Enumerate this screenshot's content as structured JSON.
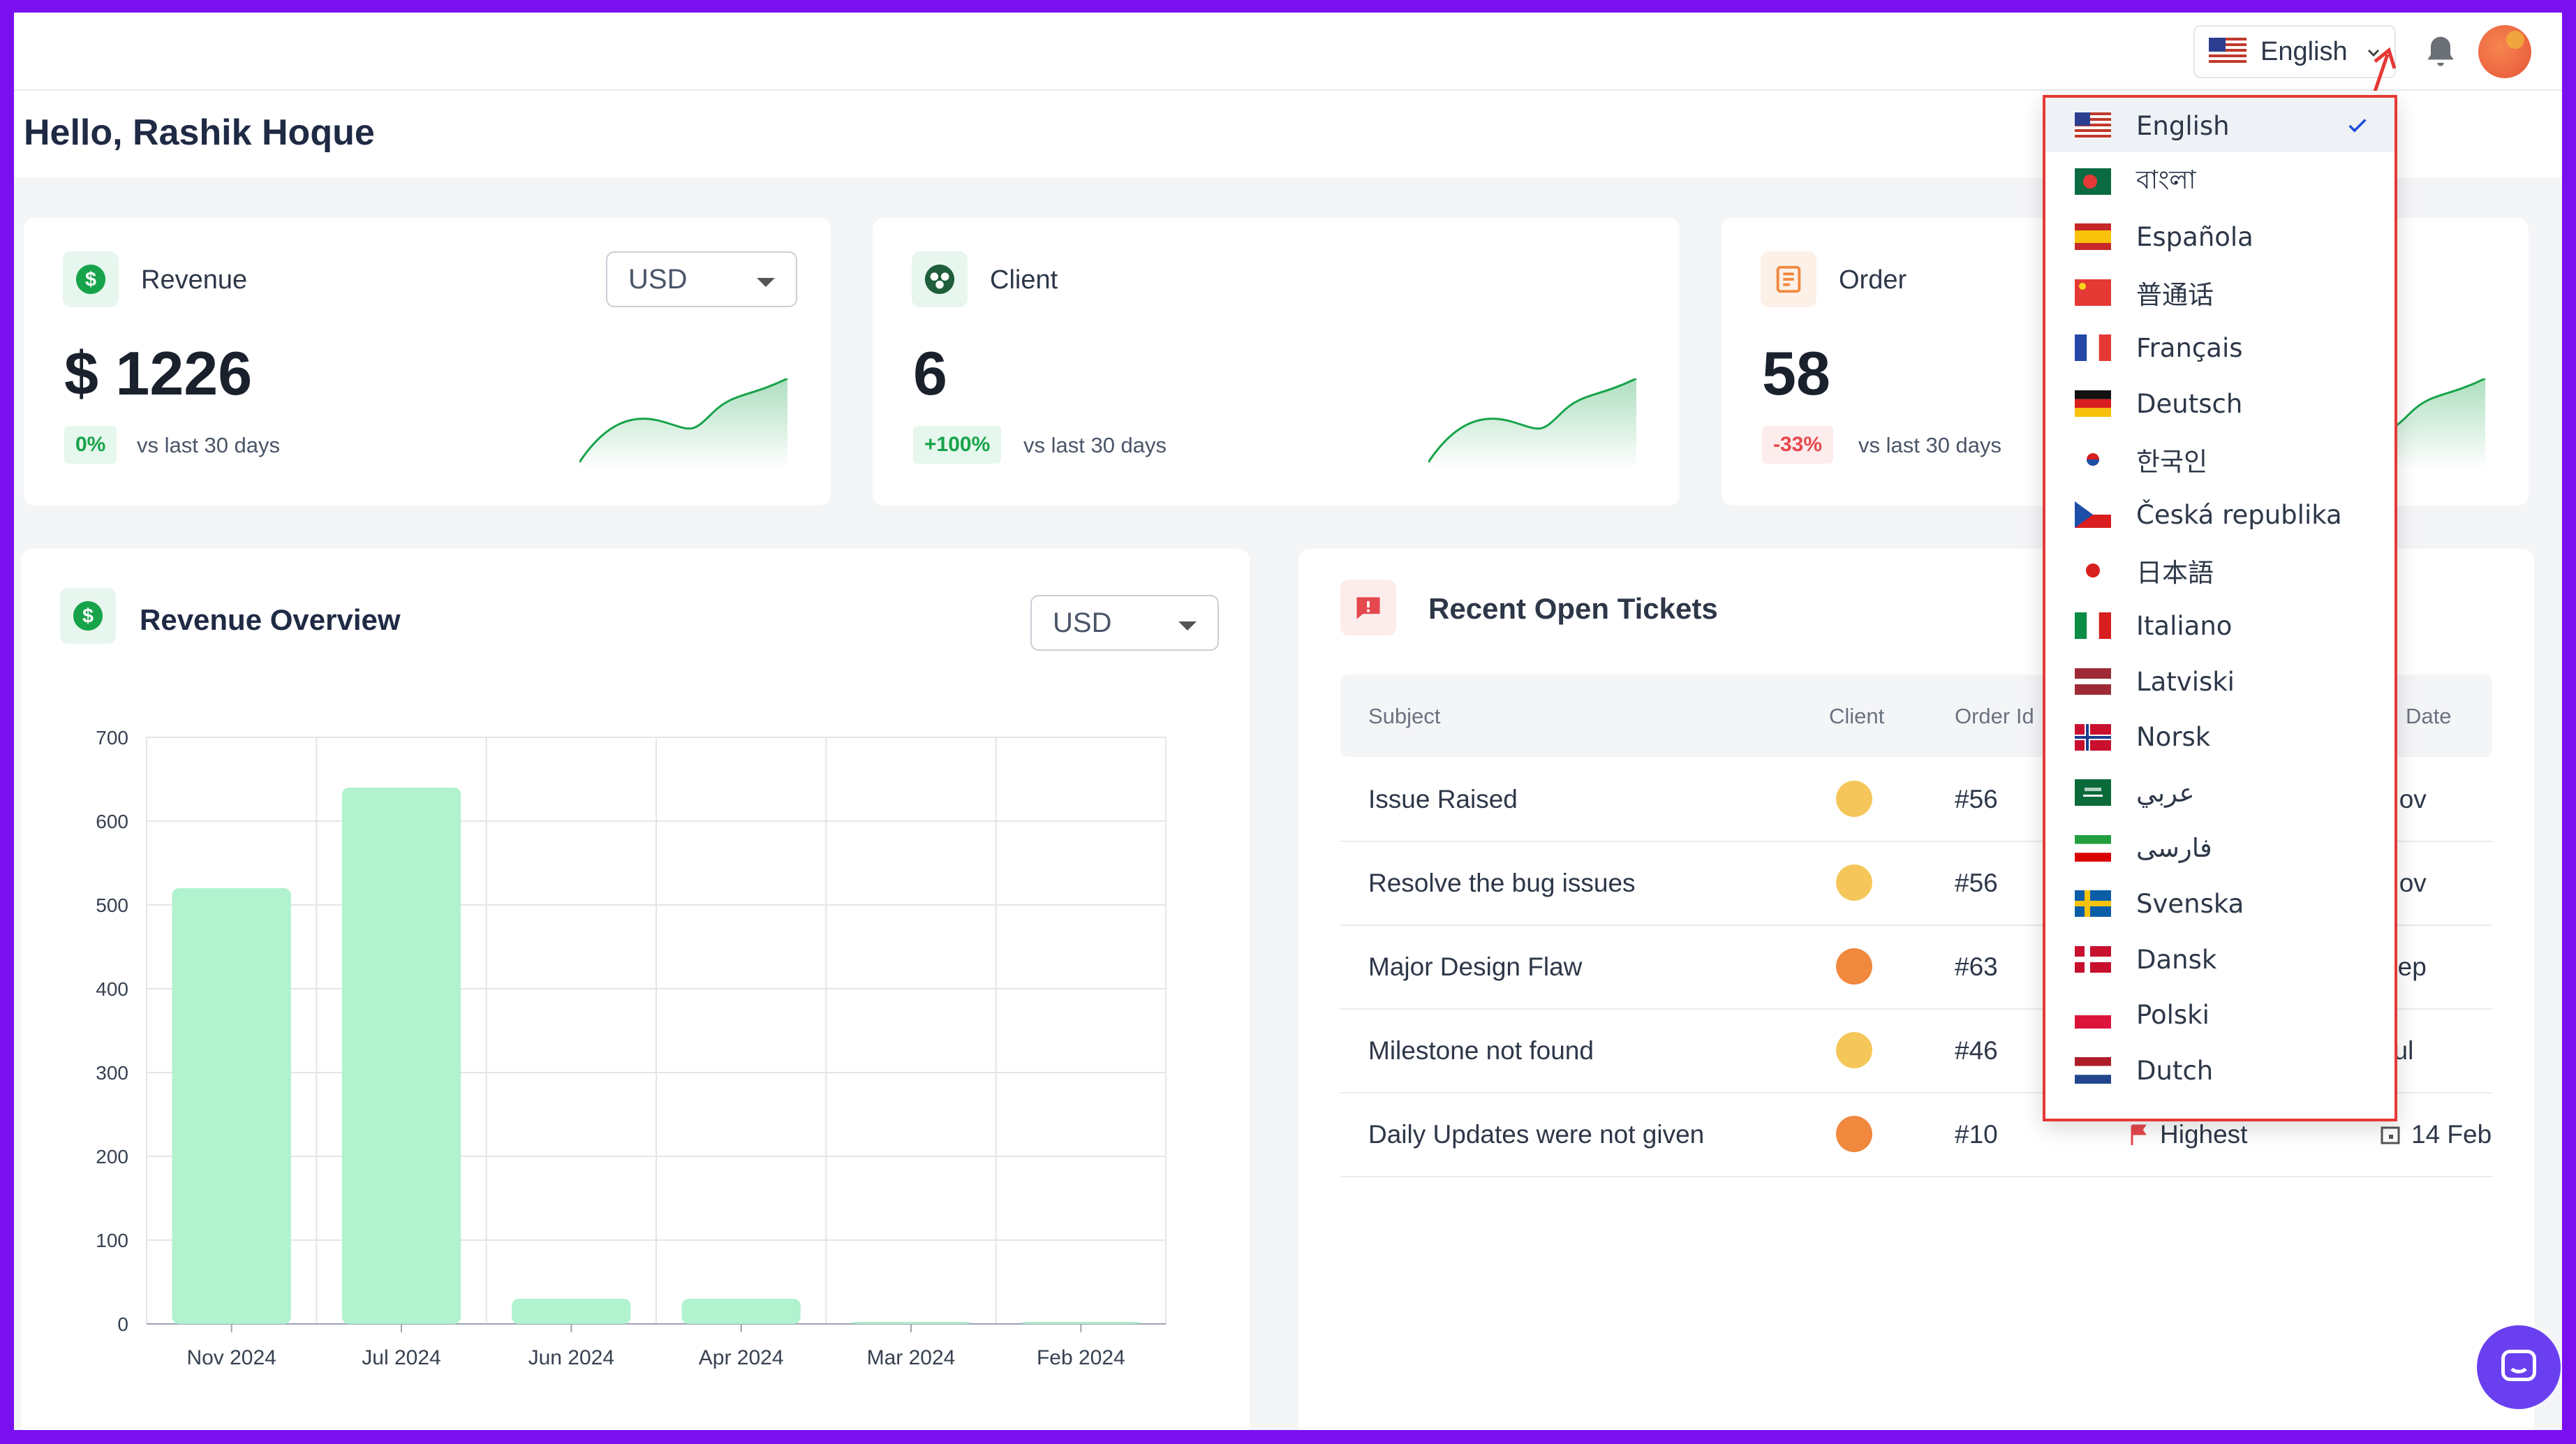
{
  "header": {
    "language": {
      "label": "English",
      "flag": "us"
    },
    "bell_icon": "bell-icon",
    "avatar": "user-avatar"
  },
  "greeting": "Hello, Rashik Hoque",
  "stats": [
    {
      "title": "Revenue",
      "icon": "dollar-icon",
      "value": "$ 1226",
      "change": "0%",
      "change_type": "up",
      "comparison": "vs last 30 days",
      "currency": "USD",
      "accent": "#17a34a"
    },
    {
      "title": "Client",
      "icon": "clients-icon",
      "value": "6",
      "change": "+100%",
      "change_type": "up",
      "comparison": "vs last 30 days",
      "accent": "#17a34a"
    },
    {
      "title": "Order",
      "icon": "orders-icon",
      "value": "58",
      "change": "-33%",
      "change_type": "down",
      "comparison": "vs last 30 days",
      "accent": "#f0883e"
    }
  ],
  "revenue_overview": {
    "title": "Revenue Overview",
    "currency": "USD"
  },
  "chart_data": {
    "type": "bar",
    "title": "Revenue Overview",
    "categories": [
      "Nov 2024",
      "Jul 2024",
      "Jun 2024",
      "Apr 2024",
      "Mar 2024",
      "Feb 2024"
    ],
    "values": [
      520,
      640,
      30,
      30,
      2,
      1
    ],
    "ylim": [
      0,
      700
    ],
    "yticks": [
      "700",
      "600",
      "500",
      "400",
      "300",
      "200",
      "100",
      "0"
    ],
    "grid": true,
    "color": "#b1f2cf"
  },
  "tickets": {
    "title": "Recent Open Tickets",
    "columns": {
      "subject": "Subject",
      "client": "Client",
      "order_id": "Order Id",
      "date": "Date"
    },
    "rows": [
      {
        "subject": "Issue Raised",
        "order_id": "#56",
        "date": "Nov",
        "avatar_color": "#f5c75a"
      },
      {
        "subject": "Resolve the bug issues",
        "order_id": "#56",
        "date": "Nov",
        "avatar_color": "#f5c75a"
      },
      {
        "subject": "Major Design Flaw",
        "order_id": "#63",
        "date": "Sep",
        "avatar_color": "#f0883e"
      },
      {
        "subject": "Milestone not found",
        "order_id": "#46",
        "date": "Jul",
        "avatar_color": "#f5c75a"
      },
      {
        "subject": "Daily Updates were not given",
        "order_id": "#10",
        "priority": "Highest",
        "date": "14 Feb",
        "avatar_color": "#f0883e"
      }
    ]
  },
  "language_menu": {
    "items": [
      {
        "name": "English",
        "flag": "us",
        "selected": true
      },
      {
        "name": "বাংলা",
        "flag": "bd"
      },
      {
        "name": "Española",
        "flag": "es"
      },
      {
        "name": "普通话",
        "flag": "cn"
      },
      {
        "name": "Français",
        "flag": "fr"
      },
      {
        "name": "Deutsch",
        "flag": "de"
      },
      {
        "name": "한국인",
        "flag": "kr"
      },
      {
        "name": "Česká republika",
        "flag": "cz"
      },
      {
        "name": "日本語",
        "flag": "jp"
      },
      {
        "name": "Italiano",
        "flag": "it"
      },
      {
        "name": "Latviski",
        "flag": "lv"
      },
      {
        "name": "Norsk",
        "flag": "no"
      },
      {
        "name": "عربي",
        "flag": "sa"
      },
      {
        "name": "فارسی",
        "flag": "ir"
      },
      {
        "name": "Svenska",
        "flag": "se"
      },
      {
        "name": "Dansk",
        "flag": "dk"
      },
      {
        "name": "Polski",
        "flag": "pl"
      },
      {
        "name": "Dutch",
        "flag": "nl"
      }
    ]
  },
  "chat_icon": "chat-icon"
}
